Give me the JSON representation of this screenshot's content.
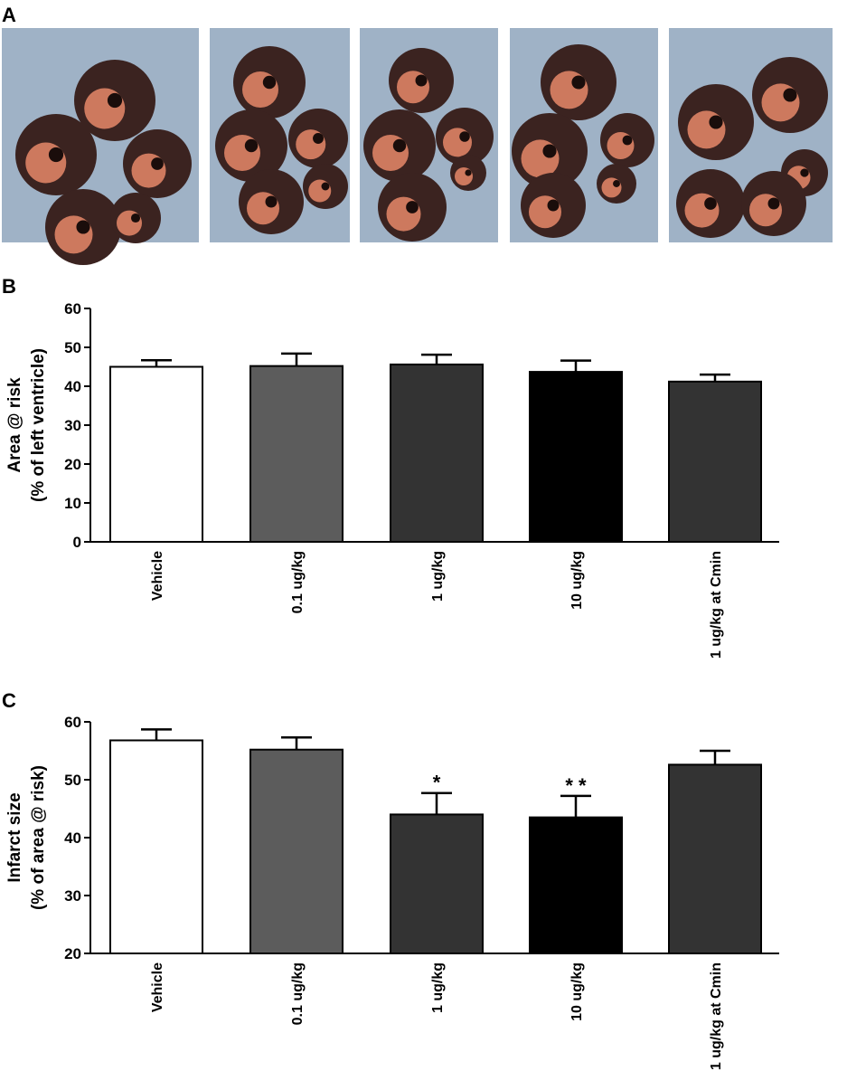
{
  "photo_panel": {
    "label": "A"
  },
  "chart_data": [
    {
      "type": "bar",
      "label": "B",
      "ylabel": [
        "Area @ risk",
        "(% of left ventricle)"
      ],
      "categories": [
        "Vehicle",
        "0.1 ug/kg",
        "1 ug/kg",
        "10 ug/kg",
        "1 ug/kg at Cmin"
      ],
      "values": [
        45,
        45.2,
        45.6,
        43.7,
        41.2
      ],
      "errors": [
        1.7,
        3.2,
        2.5,
        2.9,
        1.8
      ],
      "colors": [
        "#ffffff",
        "#5c5c5c",
        "#333333",
        "#000000",
        "#333333"
      ],
      "ylim": [
        0,
        60
      ],
      "yticks": [
        0,
        10,
        20,
        30,
        40,
        50,
        60
      ]
    },
    {
      "type": "bar",
      "label": "C",
      "ylabel": [
        "Infarct size",
        "(% of area @ risk)"
      ],
      "categories": [
        "Vehicle",
        "0.1 ug/kg",
        "1 ug/kg",
        "10 ug/kg",
        "1 ug/kg at Cmin"
      ],
      "values": [
        56.8,
        55.2,
        44,
        43.5,
        52.6
      ],
      "errors": [
        1.9,
        2.1,
        3.7,
        3.7,
        2.4
      ],
      "significance": [
        null,
        null,
        "*",
        "* *",
        null
      ],
      "colors": [
        "#ffffff",
        "#5c5c5c",
        "#333333",
        "#000000",
        "#333333"
      ],
      "ylim": [
        20,
        60
      ],
      "yticks": [
        20,
        30,
        40,
        50,
        60
      ]
    }
  ]
}
